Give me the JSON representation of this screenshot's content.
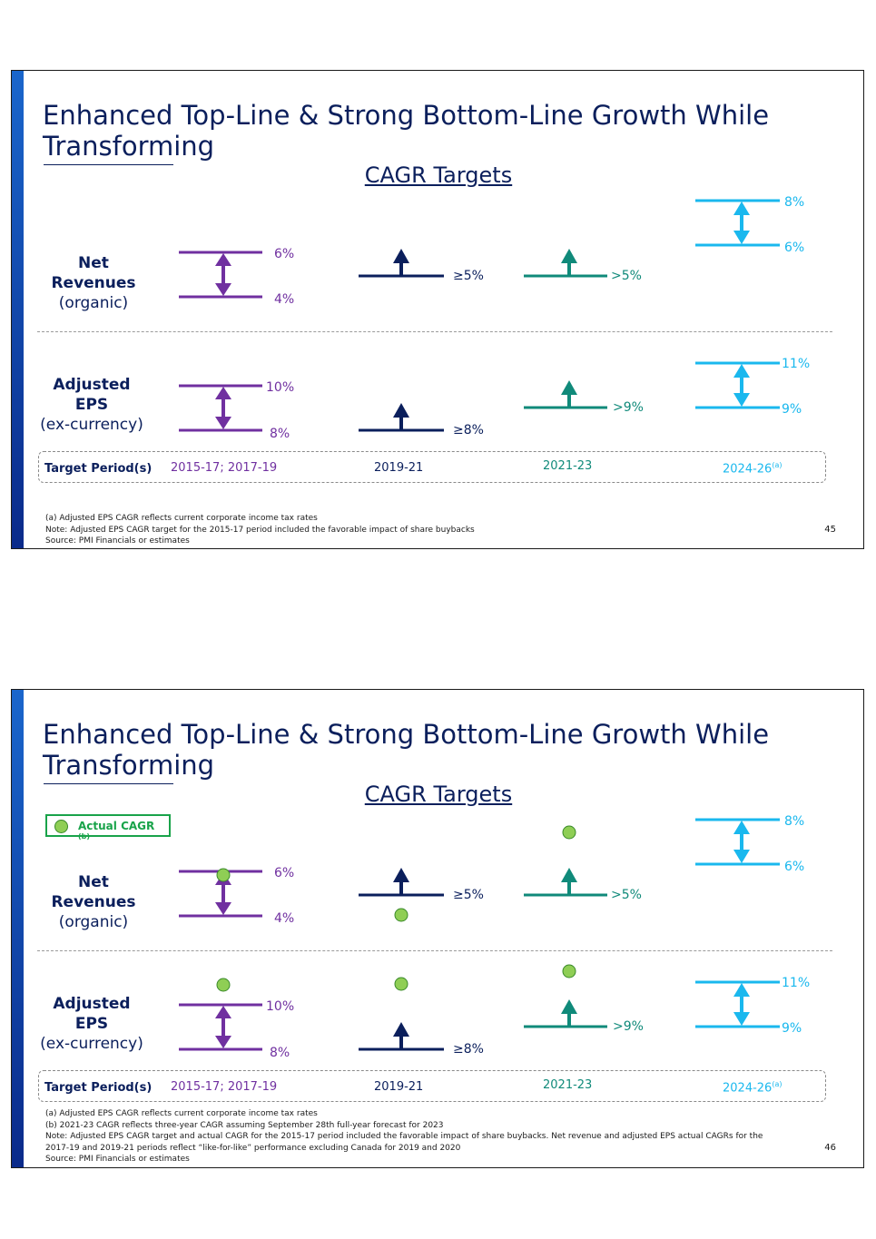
{
  "colors": {
    "purple": "#7030a0",
    "navy": "#0b1f5c",
    "teal": "#108a7a",
    "sky": "#1ab8ee",
    "dot_fill": "#8fce55",
    "legend_green": "#19a34a"
  },
  "slide1": {
    "title": "Enhanced Top-Line & Strong Bottom-Line Growth While Transforming",
    "subtitle": "CAGR Targets",
    "net_revenues": {
      "line1": "Net",
      "line2": "Revenues",
      "line3": "(organic)"
    },
    "eps": {
      "line1": "Adjusted",
      "line2": "EPS",
      "line3": "(ex-currency)"
    },
    "labels": {
      "nr_2015_high": "6%",
      "nr_2015_low": "4%",
      "nr_2019": "≥5%",
      "nr_2021": ">5%",
      "nr_2024_high": "8%",
      "nr_2024_low": "6%",
      "eps_2015_high": "10%",
      "eps_2015_low": "8%",
      "eps_2019": "≥8%",
      "eps_2021": ">9%",
      "eps_2024_high": "11%",
      "eps_2024_low": "9%"
    },
    "period_title": "Target Period(s)",
    "periods": {
      "p1": "2015-17; 2017-19",
      "p2": "2019-21",
      "p3": "2021-23",
      "p4": "2024-26",
      "p4_sup": "(a)"
    },
    "footnotes": [
      "(a) Adjusted EPS CAGR reflects current corporate income tax rates",
      "Note: Adjusted EPS CAGR target for the 2015-17 period included the favorable impact of share buybacks",
      "Source: PMI Financials or estimates"
    ],
    "page": "45"
  },
  "slide2": {
    "title": "Enhanced Top-Line & Strong Bottom-Line Growth While Transforming",
    "subtitle": "CAGR Targets",
    "legend": "Actual CAGR",
    "legend_sup": "(b)",
    "net_revenues": {
      "line1": "Net",
      "line2": "Revenues",
      "line3": "(organic)"
    },
    "eps": {
      "line1": "Adjusted",
      "line2": "EPS",
      "line3": "(ex-currency)"
    },
    "labels": {
      "nr_2015_high": "6%",
      "nr_2015_low": "4%",
      "nr_2019": "≥5%",
      "nr_2021": ">5%",
      "nr_2024_high": "8%",
      "nr_2024_low": "6%",
      "eps_2015_high": "10%",
      "eps_2015_low": "8%",
      "eps_2019": "≥8%",
      "eps_2021": ">9%",
      "eps_2024_high": "11%",
      "eps_2024_low": "9%"
    },
    "period_title": "Target Period(s)",
    "periods": {
      "p1": "2015-17; 2017-19",
      "p2": "2019-21",
      "p3": "2021-23",
      "p4": "2024-26",
      "p4_sup": "(a)"
    },
    "footnotes": [
      "(a) Adjusted EPS CAGR reflects current corporate income tax rates",
      "(b) 2021-23 CAGR reflects three-year CAGR assuming September 28th full-year forecast for 2023",
      "Note: Adjusted EPS CAGR target and actual CAGR for the 2015-17 period included the favorable impact of share buybacks. Net revenue and adjusted EPS actual CAGRs for the",
      "2017-19 and 2019-21 periods reflect “like-for-like” performance excluding Canada for 2019 and 2020",
      "Source: PMI Financials or estimates"
    ],
    "page": "46"
  }
}
